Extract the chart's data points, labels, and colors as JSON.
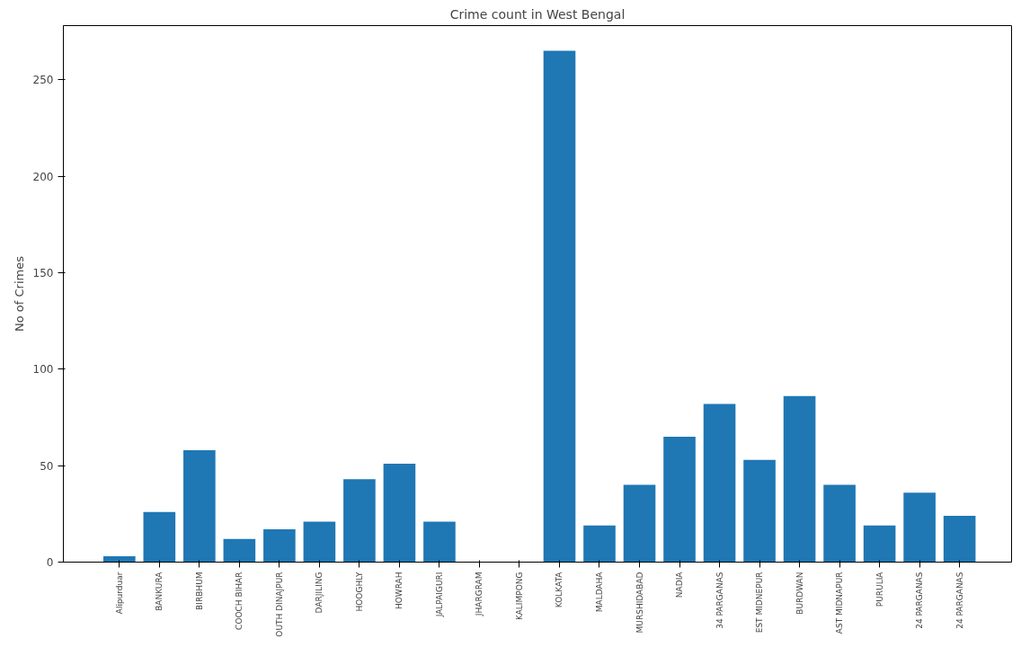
{
  "chart_data": {
    "type": "bar",
    "title": "Crime count in West Bengal",
    "ylabel": "No of Crimes",
    "categories": [
      "Alipurduar",
      "BANKURA",
      "BIRBHUM",
      "COOCH BIHAR",
      "OUTH DINAJPUR",
      "DARJILING",
      "HOOGHLY",
      "HOWRAH",
      "JALPAIGURI",
      "JHARGRAM",
      "KALIMPONG",
      "KOLKATA",
      "MALDAHA",
      "MURSHIDABAD",
      "NADIA",
      "34 PARGANAS",
      "EST MIDNEPUR",
      "BURDWAN",
      "AST MIDNAPUR",
      "PURULIA",
      "24 PARGANAS",
      "24 PARGANAS"
    ],
    "values": [
      3,
      26,
      58,
      12,
      17,
      21,
      43,
      51,
      21,
      0,
      0,
      265,
      19,
      40,
      65,
      82,
      53,
      86,
      40,
      19,
      36,
      24
    ],
    "color": "#1f77b4",
    "ylim": [
      0,
      278
    ],
    "yticks": [
      0,
      50,
      100,
      150,
      200,
      250
    ],
    "grid": false
  }
}
